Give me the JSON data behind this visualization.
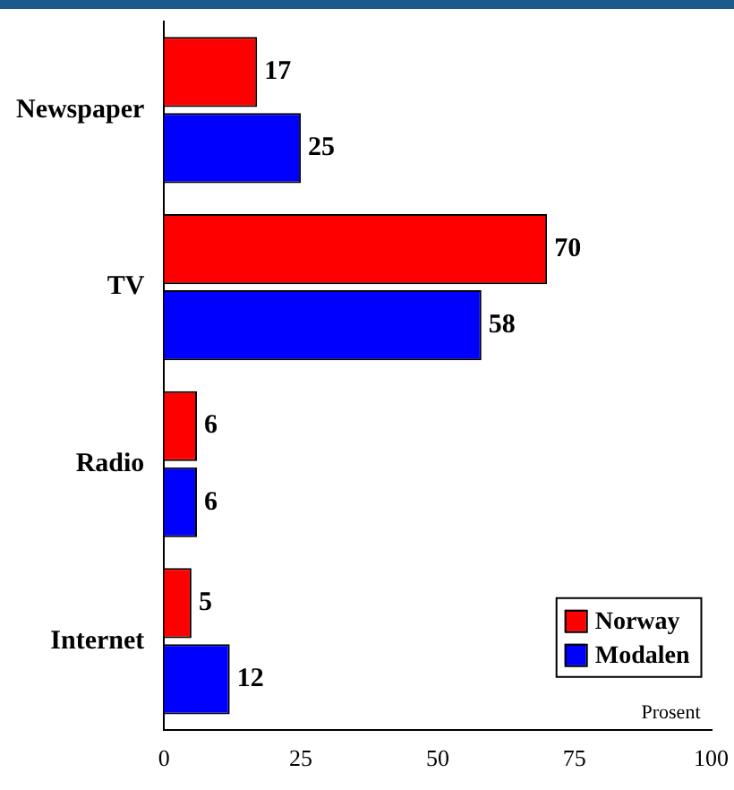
{
  "chart_data": {
    "type": "bar",
    "orientation": "horizontal",
    "categories": [
      "Newspaper",
      "TV",
      "Radio",
      "Internet"
    ],
    "series": [
      {
        "name": "Norway",
        "color": "#ff0000",
        "values": [
          17,
          70,
          6,
          5
        ]
      },
      {
        "name": "Modalen",
        "color": "#0000ff",
        "values": [
          25,
          58,
          6,
          12
        ]
      }
    ],
    "xlim": [
      0,
      100
    ],
    "xticks": [
      0,
      25,
      50,
      75,
      100
    ],
    "xlabel": "Prosent",
    "grid": false,
    "legend": "bottom right",
    "data_labels": true
  }
}
